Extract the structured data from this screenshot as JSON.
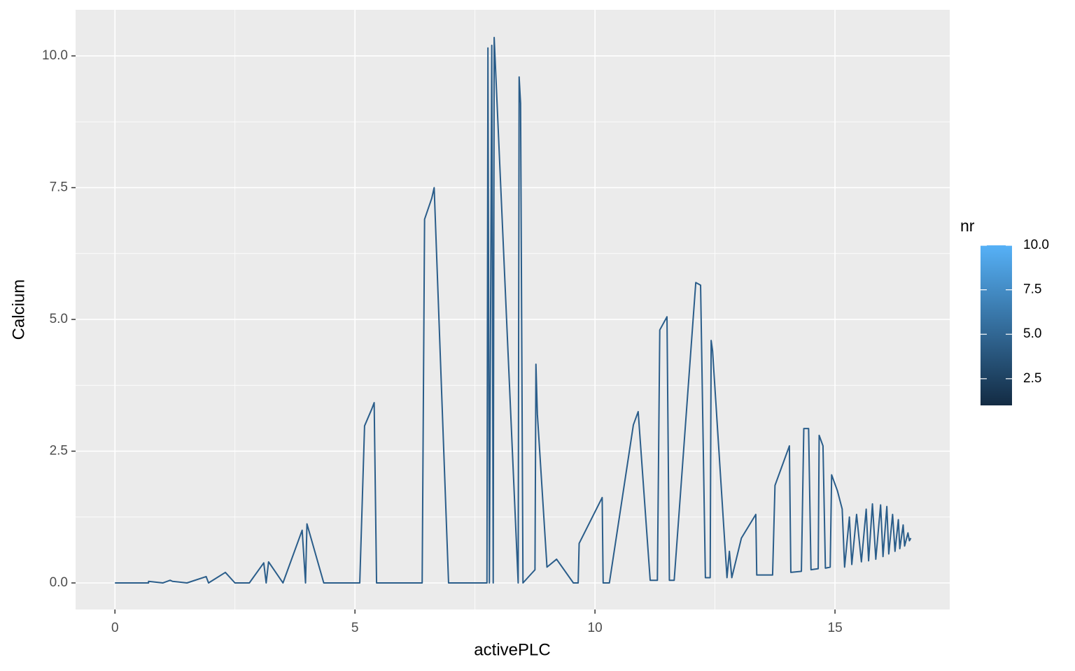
{
  "chart_data": {
    "type": "line",
    "x_label": "activePLC",
    "y_label": "Calcium",
    "x": [
      0,
      0.7,
      0.7,
      1.0,
      1.15,
      1.2,
      1.5,
      1.9,
      1.95,
      2.3,
      2.5,
      2.8,
      3.1,
      3.15,
      3.2,
      3.5,
      3.9,
      3.97,
      4.0,
      4.35,
      5.1,
      5.2,
      5.35,
      5.4,
      5.45,
      6.4,
      6.45,
      6.6,
      6.65,
      6.95,
      7.75,
      7.77,
      7.8,
      7.85,
      7.88,
      7.9,
      8.4,
      8.42,
      8.45,
      8.5,
      8.75,
      8.77,
      8.8,
      9.0,
      9.2,
      9.55,
      9.65,
      9.67,
      10.15,
      10.17,
      10.3,
      10.8,
      10.9,
      11.15,
      11.3,
      11.35,
      11.5,
      11.55,
      11.65,
      12.1,
      12.2,
      12.3,
      12.4,
      12.42,
      12.45,
      12.75,
      12.8,
      12.85,
      13.05,
      13.35,
      13.37,
      13.7,
      13.75,
      14.05,
      14.08,
      14.3,
      14.35,
      14.45,
      14.5,
      14.65,
      14.67,
      14.75,
      14.8,
      14.9,
      14.93,
      15.05,
      15.15,
      15.2,
      15.3,
      15.35,
      15.45,
      15.55,
      15.65,
      15.7,
      15.78,
      15.85,
      15.95,
      16.0,
      16.08,
      16.12,
      16.2,
      16.25,
      16.32,
      16.35,
      16.42,
      16.45,
      16.52,
      16.55,
      16.58
    ],
    "series": [
      {
        "color": "#2a5d8a",
        "values": [
          0,
          0,
          0.03,
          0,
          0.05,
          0.03,
          0,
          0.12,
          0,
          0.2,
          0,
          0,
          0.38,
          0,
          0.4,
          0,
          1.0,
          0,
          1.12,
          0,
          0,
          2.98,
          3.3,
          3.42,
          0,
          0,
          6.9,
          7.3,
          7.5,
          0,
          0,
          10.15,
          0,
          10.2,
          0,
          10.35,
          0,
          9.6,
          9.1,
          0,
          0.25,
          4.15,
          3.2,
          0.3,
          0.45,
          0,
          0,
          0.75,
          1.62,
          0,
          0,
          3.0,
          3.25,
          0.05,
          0.05,
          4.8,
          5.05,
          0.05,
          0.05,
          5.7,
          5.65,
          0.1,
          0.1,
          4.6,
          4.4,
          0.1,
          0.6,
          0.1,
          0.85,
          1.3,
          0.15,
          0.15,
          1.85,
          2.6,
          0.2,
          0.22,
          2.93,
          2.93,
          0.25,
          0.27,
          2.8,
          2.6,
          0.28,
          0.3,
          2.05,
          1.75,
          1.4,
          0.3,
          1.25,
          0.35,
          1.3,
          0.4,
          1.4,
          0.42,
          1.5,
          0.45,
          1.48,
          0.5,
          1.45,
          0.55,
          1.3,
          0.6,
          1.2,
          0.65,
          1.1,
          0.7,
          0.95,
          0.8,
          0.85
        ]
      }
    ],
    "xlim": [
      -0.82,
      17.39
    ],
    "ylim": [
      -0.504,
      10.875
    ],
    "xticks": [
      0,
      5,
      10,
      15
    ],
    "yticks": [
      {
        "value": 0,
        "label": "0.0"
      },
      {
        "value": 2.5,
        "label": "2.5"
      },
      {
        "value": 5,
        "label": "5.0"
      },
      {
        "value": 7.5,
        "label": "7.5"
      },
      {
        "value": 10,
        "label": "10.0"
      }
    ],
    "minor_xticks": [
      2.5,
      7.5,
      12.5
    ],
    "minor_yticks": [
      1.25,
      3.75,
      6.25,
      8.75
    ],
    "grid": true,
    "color_scale": {
      "name": "nr",
      "low": "#132B43",
      "high": "#56B1F7",
      "limits": [
        1,
        10
      ],
      "ticks": [
        {
          "value": 2.5,
          "label": "2.5"
        },
        {
          "value": 5,
          "label": "5.0"
        },
        {
          "value": 7.5,
          "label": "7.5"
        },
        {
          "value": 10,
          "label": "10.0"
        }
      ]
    }
  }
}
